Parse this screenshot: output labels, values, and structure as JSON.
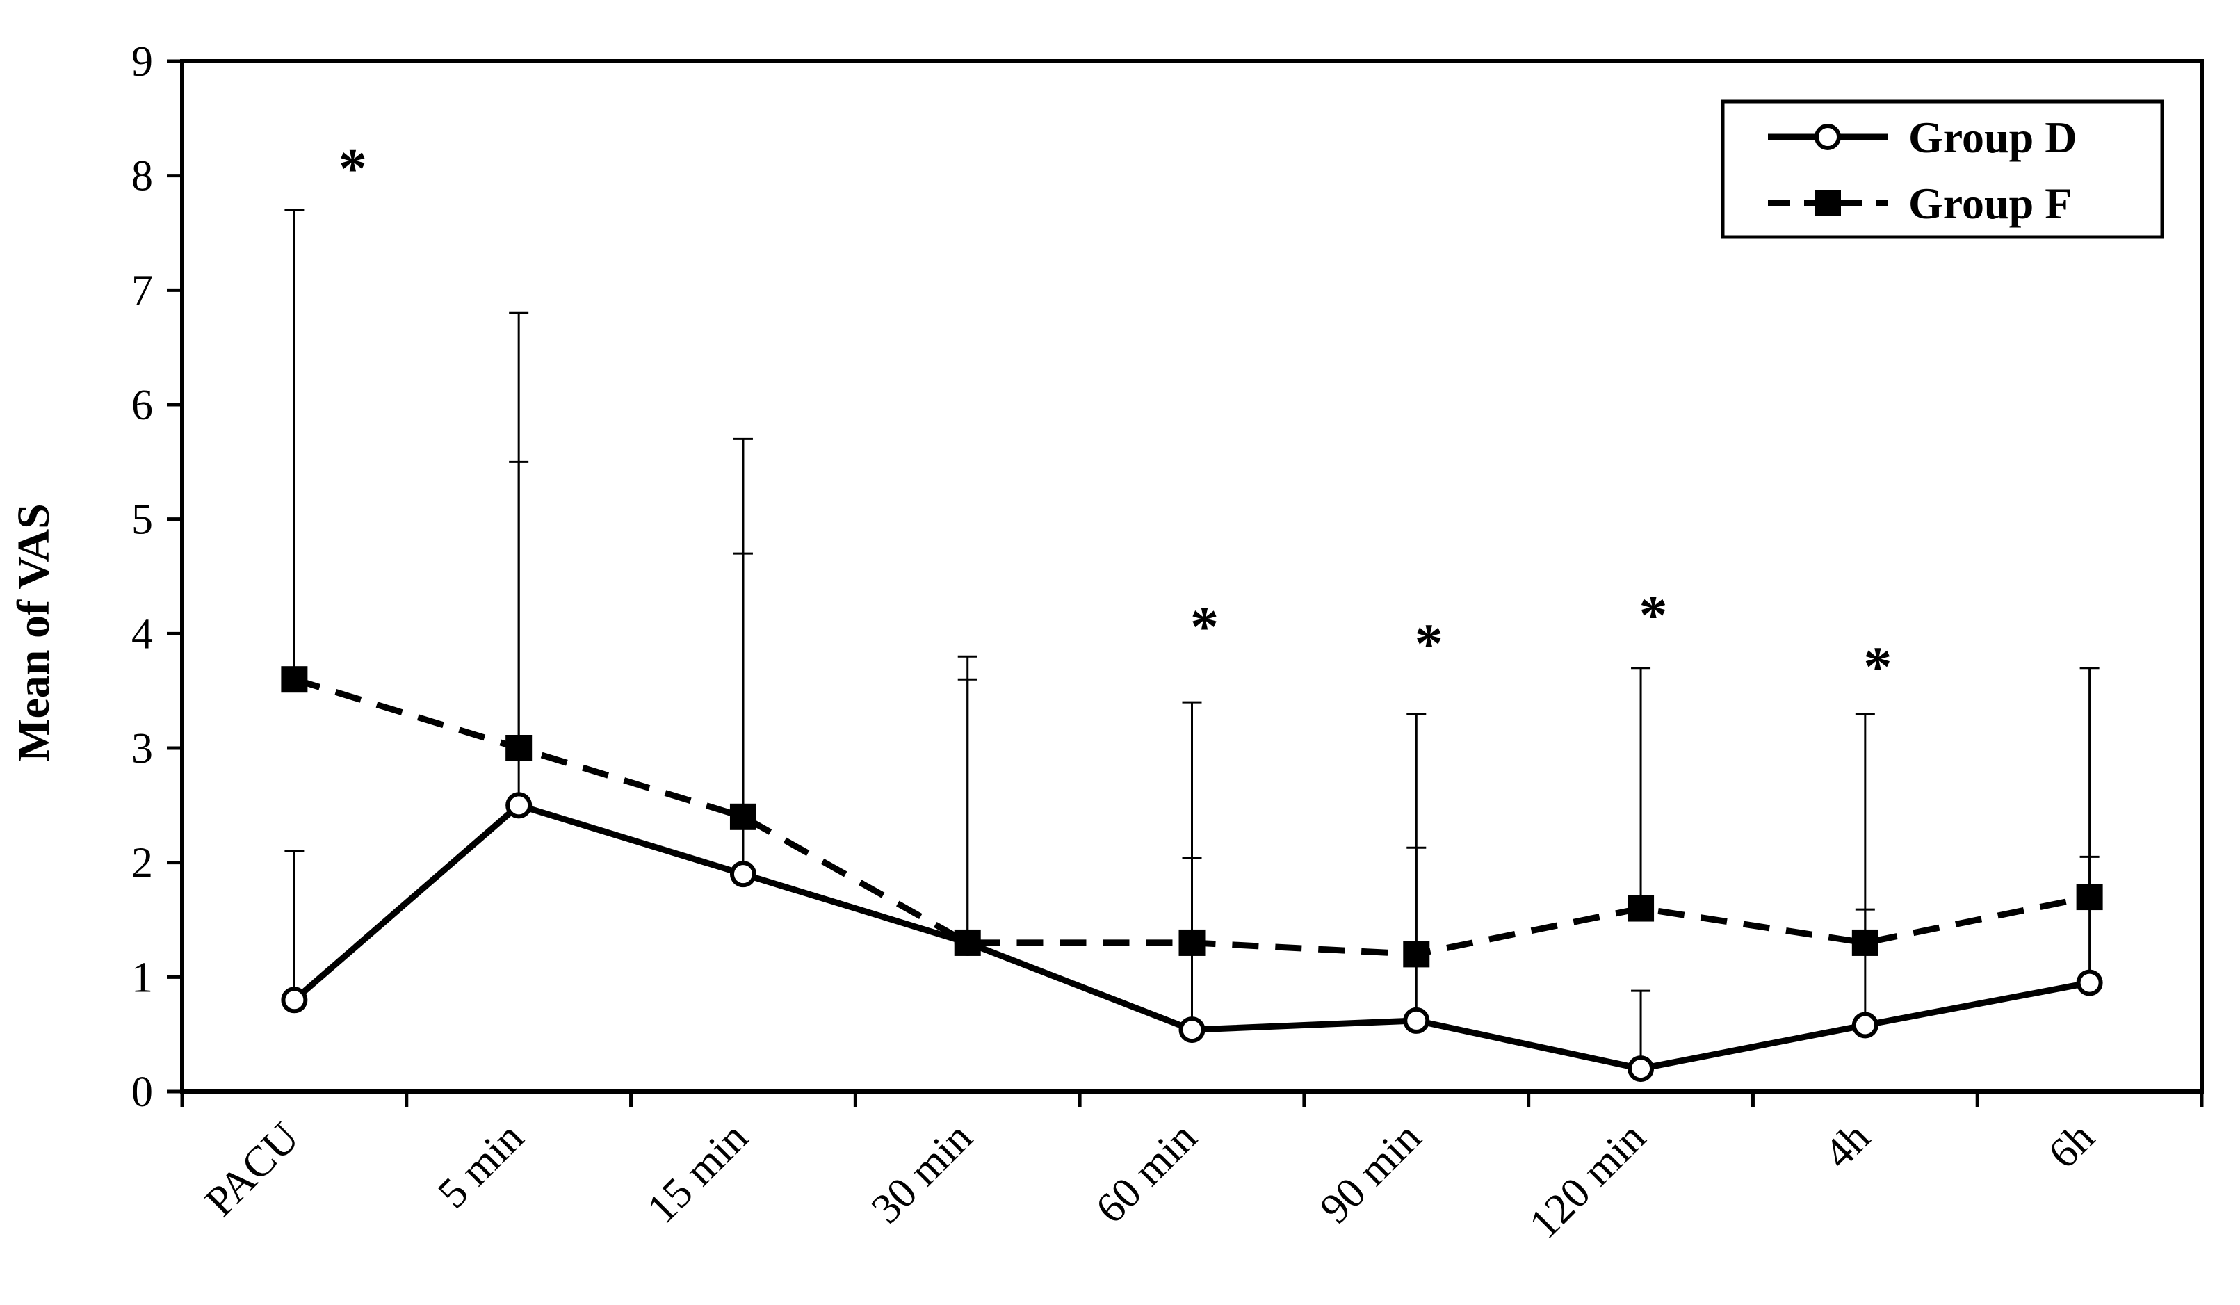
{
  "chart_data": {
    "type": "line",
    "title": "",
    "xlabel": "",
    "ylabel": "Mean of VAS",
    "ylim": [
      0,
      9
    ],
    "yticks": [
      0,
      1,
      2,
      3,
      4,
      5,
      6,
      7,
      8,
      9
    ],
    "categories": [
      "PACU",
      "5 min",
      "15 min",
      "30 min",
      "60 min",
      "90 min",
      "120 min",
      "4h",
      "6h"
    ],
    "series": [
      {
        "name": "Group D",
        "line_style": "solid",
        "marker": "open-circle",
        "values": [
          0.8,
          2.5,
          1.9,
          1.3,
          0.54,
          0.62,
          0.2,
          0.58,
          0.95
        ],
        "error_upper": [
          2.1,
          5.5,
          4.7,
          3.6,
          2.04,
          2.13,
          0.88,
          1.59,
          2.05
        ]
      },
      {
        "name": "Group F",
        "line_style": "dashed",
        "marker": "filled-square",
        "values": [
          3.6,
          3.0,
          2.4,
          1.3,
          1.3,
          1.2,
          1.6,
          1.3,
          1.7
        ],
        "error_upper": [
          7.7,
          6.8,
          5.7,
          3.8,
          3.4,
          3.3,
          3.7,
          3.3,
          3.7
        ]
      }
    ],
    "significance_markers": [
      {
        "category": "PACU",
        "symbol": "*",
        "y": 8.2
      },
      {
        "category": "60 min",
        "symbol": "*",
        "y": 4.2
      },
      {
        "category": "90 min",
        "symbol": "*",
        "y": 4.05
      },
      {
        "category": "120 min",
        "symbol": "*",
        "y": 4.3
      },
      {
        "category": "4h",
        "symbol": "*",
        "y": 3.85
      }
    ],
    "legend_position": "top-right",
    "grid": false
  }
}
